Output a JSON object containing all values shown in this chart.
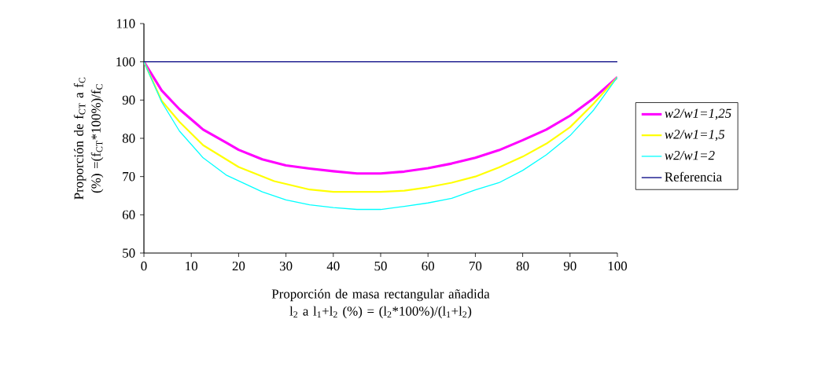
{
  "chart_data": {
    "type": "line",
    "xlabel": "Proporción de masa rectangular añadida l$_{2}$ a l$_{1}$+l$_{2}$ (%) = (l$_{2}$*100%)/(l$_{1}$+l$_{2}$)",
    "ylabel": "Proporción de f$_{CT}$ a f$_{C}$ (%) =(f$_{CT}$*100%)/f$_{C}$",
    "xlim": [
      0,
      100
    ],
    "xticks": [
      0,
      10,
      20,
      30,
      40,
      50,
      60,
      70,
      80,
      90,
      100
    ],
    "ylim": [
      50,
      110
    ],
    "yticks": [
      50,
      60,
      70,
      80,
      90,
      100,
      110
    ],
    "series": [
      {
        "name": "w2/w1=1,25",
        "color": "#ff00ff",
        "x": [
          0,
          3.75,
          7.5,
          12.5,
          17.5,
          20,
          25,
          30,
          35,
          40,
          45,
          50,
          55,
          60,
          65,
          70,
          75,
          80,
          85,
          90,
          95,
          100
        ],
        "values": [
          100,
          92.5,
          87.6,
          82.3,
          78.8,
          77.0,
          74.5,
          72.9,
          72.1,
          71.4,
          70.8,
          70.8,
          71.3,
          72.2,
          73.4,
          74.9,
          76.9,
          79.5,
          82.3,
          85.9,
          90.5,
          96.0
        ]
      },
      {
        "name": "w2/w1=1,5",
        "color": "#ffff00",
        "x": [
          0,
          3.75,
          7.5,
          12.5,
          20,
          27.5,
          35,
          40,
          50,
          55,
          60,
          65,
          70,
          75,
          80,
          85,
          90,
          95,
          100
        ],
        "values": [
          100,
          89.8,
          84.3,
          78.2,
          72.5,
          68.8,
          66.6,
          66.0,
          66.0,
          66.3,
          67.2,
          68.4,
          70.0,
          72.4,
          75.2,
          78.6,
          82.9,
          89.1,
          96.0
        ]
      },
      {
        "name": "w2/w1=2",
        "color": "#00ffff",
        "x": [
          0,
          3.75,
          7.5,
          12.5,
          17.5,
          25,
          30,
          35,
          40,
          45,
          50,
          55,
          60,
          65,
          70,
          75,
          80,
          85,
          90,
          95,
          100
        ],
        "values": [
          100,
          89.5,
          81.9,
          74.9,
          70.3,
          66.0,
          63.9,
          62.6,
          61.9,
          61.4,
          61.4,
          62.2,
          63.1,
          64.3,
          66.5,
          68.4,
          71.6,
          75.7,
          80.7,
          87.4,
          96.0
        ]
      }
    ],
    "ref_lines": [
      {
        "axis": "y",
        "value": 100,
        "label": "Referencia",
        "color": "#000080"
      }
    ],
    "legend": "right",
    "grid": false,
    "marker": "none",
    "line_style": "solid"
  }
}
